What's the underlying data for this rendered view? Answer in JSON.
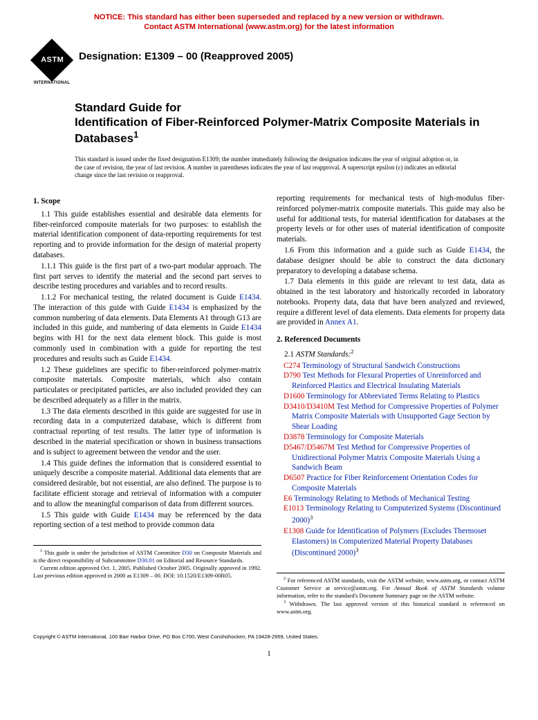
{
  "notice": {
    "line1": "NOTICE: This standard has either been superseded and replaced by a new version or withdrawn.",
    "line2": "Contact ASTM International (www.astm.org) for the latest information"
  },
  "logo": {
    "text": "ASTM",
    "sub": "INTERNATIONAL"
  },
  "designation": "Designation: E1309 – 00 (Reapproved 2005)",
  "title": {
    "line1": "Standard Guide for",
    "line2": "Identification of Fiber-Reinforced Polymer-Matrix Composite Materials in Databases",
    "sup": "1"
  },
  "issue_note": "This standard is issued under the fixed designation E1309; the number immediately following the designation indicates the year of original adoption or, in the case of revision, the year of last revision. A number in parentheses indicates the year of last reapproval. A superscript epsilon (ε) indicates an editorial change since the last revision or reapproval.",
  "left": {
    "scope_head": "1. Scope",
    "p11": "1.1 This guide establishes essential and desirable data elements for fiber-reinforced composite materials for two purposes: to establish the material identification component of data-reporting requirements for test reporting and to provide information for the design of material property databases.",
    "p111": "1.1.1 This guide is the first part of a two-part modular approach. The first part serves to identify the material and the second part serves to describe testing procedures and variables and to record results.",
    "p112_a": "1.1.2 For mechanical testing, the related document is Guide ",
    "p112_l1": "E1434",
    "p112_b": ". The interaction of this guide with Guide ",
    "p112_l2": "E1434",
    "p112_c": " is emphasized by the common numbering of data elements. Data Elements A1 through G13 are included in this guide, and numbering of data elements in Guide ",
    "p112_l3": "E1434",
    "p112_d": " begins with H1 for the next data element block. This guide is most commonly used in combination with a guide for reporting the test procedures and results such as Guide ",
    "p112_l4": "E1434",
    "p112_e": ".",
    "p12": "1.2 These guidelines are specific to fiber-reinforced polymer-matrix composite materials. Composite materials, which also contain particulates or precipitated particles, are also included provided they can be described adequately as a filler in the matrix.",
    "p13": "1.3 The data elements described in this guide are suggested for use in recording data in a computerized database, which is different from contractual reporting of test results. The latter type of information is described in the material specification or shown in business transactions and is subject to agreement between the vendor and the user.",
    "p14": "1.4 This guide defines the information that is considered essential to uniquely describe a composite material. Additional data elements that are considered desirable, but not essential, are also defined. The purpose is to facilitate efficient storage and retrieval of information with a computer and to allow the meaningful comparison of data from different sources.",
    "p15_a": "1.5 This guide with Guide ",
    "p15_l1": "E1434",
    "p15_b": " may be referenced by the data reporting section of a test method to provide common data"
  },
  "right": {
    "cont": "reporting requirements for mechanical tests of high-modulus fiber-reinforced polymer-matrix composite materials. This guide may also be useful for additional tests, for material identification for databases at the property levels or for other uses of material identification of composite materials.",
    "p16_a": "1.6 From this information and a guide such as Guide ",
    "p16_l1": "E1434",
    "p16_b": ", the database designer should be able to construct the data dictionary preparatory to developing a database schema.",
    "p17_a": "1.7 Data elements in this guide are relevant to test data, data as obtained in the test laboratory and historically recorded in laboratory notebooks. Property data, data that have been analyzed and reviewed, require a different level of data elements. Data elements for property data are provided in ",
    "p17_l1": "Annex A1",
    "p17_b": ".",
    "ref_head": "2. Referenced Documents",
    "ref_sub_a": "2.1 ",
    "ref_sub_b": "ASTM Standards:",
    "ref_sup": "2",
    "refs": [
      {
        "code": "C274",
        "text": " Terminology of Structural Sandwich Constructions"
      },
      {
        "code": "D790",
        "text": " Test Methods for Flexural Properties of Unreinforced and Reinforced Plastics and Electrical Insulating Materials"
      },
      {
        "code": "D1600",
        "text": " Terminology for Abbreviated Terms Relating to Plastics"
      },
      {
        "code": "D3410/D3410M",
        "text": " Test Method for Compressive Properties of Polymer Matrix Composite Materials with Unsupported Gage Section by Shear Loading"
      },
      {
        "code": "D3878",
        "text": " Terminology for Composite Materials"
      },
      {
        "code": "D5467/D5467M",
        "text": " Test Method for Compressive Properties of Unidirectional Polymer Matrix Composite Materials Using a Sandwich Beam"
      },
      {
        "code": "D6507",
        "text": " Practice for Fiber Reinforcement Orientation Codes for Composite Materials"
      },
      {
        "code": "E6",
        "text": " Terminology Relating to Methods of Mechanical Testing"
      },
      {
        "code": "E1013",
        "text": " Terminology Relating to Computerized Systems (Discontinued 2000)",
        "sup": "3"
      },
      {
        "code": "E1308",
        "text": " Guide for Identification of Polymers (Excludes Thermoset Elastomers) in Computerized Material Property Databases (Discontinued 2000)",
        "sup": "3"
      }
    ]
  },
  "footnotes": {
    "left1_a": "1",
    "left1_b": " This guide is under the jurisdiction of ASTM Committee ",
    "left1_l1": "D30",
    "left1_c": " on Composite Materials and is the direct responsibility of Subcommittee ",
    "left1_l2": "D30.01",
    "left1_d": " on Editorial and Resource Standards.",
    "left2": "Current edition approved Oct. 1, 2005. Published October 2005. Originally approved in 1992. Last previous edition approved in 2000 as E1309 – 00. DOI: 10.1520/E1309-00R05.",
    "right1_a": "2",
    "right1_b": " For referenced ASTM standards, visit the ASTM website, www.astm.org, or contact ASTM Customer Service at service@astm.org. For ",
    "right1_c": "Annual Book of ASTM Standards",
    "right1_d": " volume information, refer to the standard's Document Summary page on the ASTM website.",
    "right2_a": "3",
    "right2_b": " Withdrawn. The last approved version of this historical standard is referenced on www.astm.org."
  },
  "copyright": "Copyright © ASTM International, 100 Barr Harbor Drive, PO Box C700, West Conshohocken, PA 19428-2959, United States.",
  "pagenum": "1",
  "colors": {
    "red": "#cc0000",
    "blue": "#0020aa",
    "black": "#000000"
  }
}
